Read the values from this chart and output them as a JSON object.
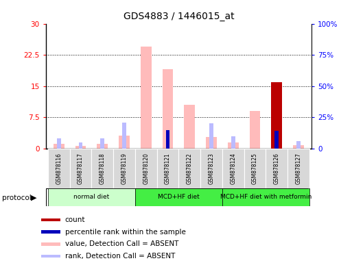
{
  "title": "GDS4883 / 1446015_at",
  "samples": [
    "GSM878116",
    "GSM878117",
    "GSM878118",
    "GSM878119",
    "GSM878120",
    "GSM878121",
    "GSM878122",
    "GSM878123",
    "GSM878124",
    "GSM878125",
    "GSM878126",
    "GSM878127"
  ],
  "value_absent": [
    1.2,
    0.7,
    1.1,
    3.2,
    24.5,
    19.0,
    10.5,
    2.8,
    1.5,
    9.0,
    0.5,
    0.8
  ],
  "rank_absent": [
    8.0,
    5.0,
    8.0,
    21.0,
    0.0,
    0.0,
    0.0,
    20.0,
    10.0,
    0.0,
    0.0,
    6.0
  ],
  "count": [
    0.0,
    0.0,
    0.0,
    0.0,
    0.0,
    0.0,
    0.0,
    0.0,
    0.0,
    0.0,
    16.0,
    0.0
  ],
  "percentile": [
    0.0,
    0.0,
    0.0,
    0.0,
    0.0,
    15.0,
    0.0,
    0.0,
    0.0,
    0.0,
    14.0,
    0.0
  ],
  "ylim_left": [
    0,
    30
  ],
  "ylim_right": [
    0,
    100
  ],
  "yticks_left": [
    0,
    7.5,
    15,
    22.5,
    30
  ],
  "yticks_left_labels": [
    "0",
    "7.5",
    "15",
    "22.5",
    "30"
  ],
  "yticks_right": [
    0,
    25,
    50,
    75,
    100
  ],
  "yticks_right_labels": [
    "0",
    "25%",
    "50%",
    "75%",
    "100%"
  ],
  "color_value_absent": "#ffbbbb",
  "color_rank_absent": "#bbbbff",
  "color_count": "#bb0000",
  "color_percentile": "#0000bb",
  "background_color": "#ffffff",
  "group_normal_color": "#ccffcc",
  "group_mcd_color": "#44ee44",
  "group_metformin_color": "#44ee44",
  "title_fontsize": 10
}
